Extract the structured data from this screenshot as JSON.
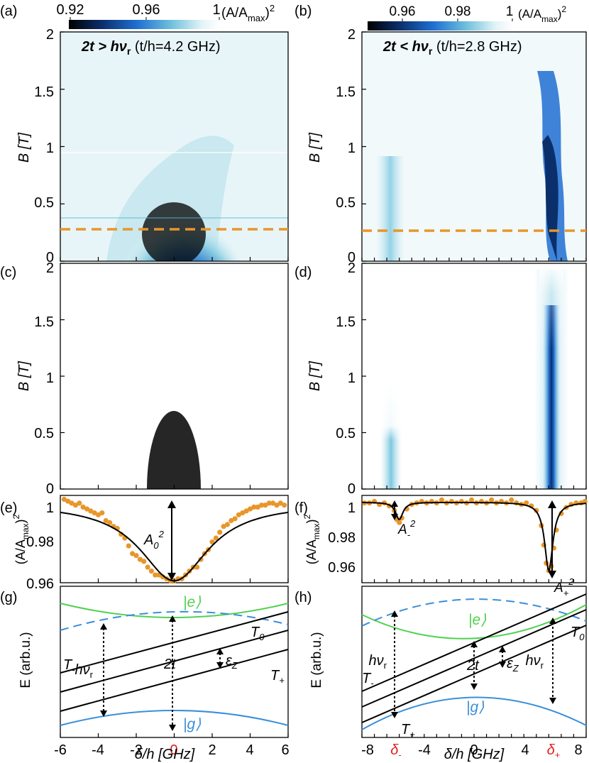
{
  "colors": {
    "orange": "#e8962a",
    "green": "#4fd14f",
    "blue": "#3b8fd9",
    "red": "#e02020",
    "black": "#000000",
    "cmap": [
      "#000000",
      "#0b2f6b",
      "#1f6fd1",
      "#6fc1dd",
      "#e3f3f7",
      "#ffffff"
    ]
  },
  "colorbars": [
    {
      "panel_label": "(a)",
      "ticks": [
        "0.92",
        "0.96",
        "1"
      ],
      "unit": "(A/A",
      "unit_sub": "max",
      "unit_end": ")",
      "unit_sup": "2"
    },
    {
      "panel_label": "(b)",
      "ticks": [
        "0.96",
        "0.98",
        "1"
      ],
      "unit": "(A/A",
      "unit_sub": "max",
      "unit_end": ")",
      "unit_sup": "2"
    }
  ],
  "maps": [
    {
      "panel_label": "(a)",
      "title_bold": "2t > hν",
      "title_sub": "r",
      "title_rest": " (t/h=4.2 GHz)",
      "ylabel": "B [T]",
      "yticks": [
        "0",
        "0.5",
        "1",
        "1.5",
        "2"
      ],
      "dashed_cut": "orange"
    },
    {
      "panel_label": "(b)",
      "title_bold": "2t < hν",
      "title_sub": "r",
      "title_rest": " (t/h=2.8 GHz)",
      "ylabel": "B [T]",
      "yticks": [
        "0",
        "0.5",
        "1",
        "1.5",
        "2"
      ],
      "dashed_cut": "orange"
    },
    {
      "panel_label": "(c)",
      "ylabel": "B [T]",
      "yticks": [
        "0",
        "0.5",
        "1",
        "1.5",
        "2"
      ]
    },
    {
      "panel_label": "(d)",
      "ylabel": "B [T]",
      "yticks": [
        "0",
        "0.5",
        "1",
        "1.5",
        "2"
      ]
    }
  ],
  "cuts": [
    {
      "panel_label": "(e)",
      "ylabel": "(A/A",
      "ylabel_sub": "max",
      "ylabel_end": ")",
      "ylabel_sup": "2",
      "yticks": [
        "0.96",
        "0.98",
        "1"
      ],
      "annot": "A",
      "annot_sub": "0",
      "annot_sup": "2"
    },
    {
      "panel_label": "(f)",
      "ylabel": "(A/A",
      "ylabel_sub": "max",
      "ylabel_end": ")",
      "ylabel_sup": "2",
      "yticks": [
        "0.96",
        "0.98",
        "1"
      ],
      "annot_minus": "A",
      "annot_minus_sub": "-",
      "annot_minus_sup": "2",
      "annot_plus": "A",
      "annot_plus_sub": "+",
      "annot_plus_sup": "2"
    }
  ],
  "energy": [
    {
      "panel_label": "(g)",
      "ylabel": "E (arb.u.)",
      "labels": {
        "e": "|e⟩",
        "g": "|g⟩",
        "Tminus": "T",
        "Tminus_sub": "-",
        "T0": "T",
        "T0_sub": "0",
        "Tplus": "T",
        "Tplus_sub": "+",
        "hv": "hν",
        "hv_sub": "r",
        "twot": "2t",
        "ez": "ε",
        "ez_sub": "Z"
      },
      "xticks": [
        "-6",
        "-4",
        "-2",
        "0",
        "2",
        "4",
        "6"
      ],
      "xlabel": "δ/h [GHz]",
      "red_tick": "0"
    },
    {
      "panel_label": "(h)",
      "ylabel": "E (arb.u.)",
      "labels": {
        "e": "|e⟩",
        "g": "|g⟩",
        "Tminus": "T",
        "Tminus_sub": "-",
        "T0": "T",
        "T0_sub": "0",
        "Tplus": "T",
        "Tplus_sub": "+",
        "hv": "hν",
        "hv_sub": "r",
        "twot": "2t",
        "ez": "ε",
        "ez_sub": "Z"
      },
      "xticks": [
        "-8",
        "-4",
        "0",
        "4",
        "8"
      ],
      "xlabel": "δ/h [GHz]",
      "red_ticks": [
        "δ",
        "δ"
      ],
      "red_subs": [
        "-",
        "+"
      ]
    }
  ],
  "chart_data": [
    {
      "type": "heatmap",
      "panel": "(a)",
      "x_range": [
        -6,
        6
      ],
      "y_range": [
        0,
        2
      ],
      "ylabel": "B [T]",
      "color_range": [
        0.92,
        1
      ],
      "dip_center_x": 0,
      "dip_halfwidth_at_B0": 3,
      "min_value": 0.92,
      "cut_B": 0.27
    },
    {
      "type": "heatmap",
      "panel": "(b)",
      "x_range": [
        -9,
        9
      ],
      "y_range": [
        0,
        2
      ],
      "ylabel": "B [T]",
      "color_range": [
        0.95,
        1
      ],
      "line_plus_x": 6,
      "line_minus_x": -6,
      "cut_B": 0.27
    },
    {
      "type": "heatmap",
      "panel": "(c)",
      "x_range": [
        -6,
        6
      ],
      "y_range": [
        0,
        2
      ],
      "ylabel": "B [T]",
      "color_range": [
        0.92,
        1
      ]
    },
    {
      "type": "heatmap",
      "panel": "(d)",
      "x_range": [
        -9,
        9
      ],
      "y_range": [
        0,
        2
      ],
      "ylabel": "B [T]",
      "color_range": [
        0.95,
        1
      ]
    },
    {
      "type": "scatter",
      "panel": "(e)",
      "x_range": [
        -6,
        6
      ],
      "ylim": [
        0.96,
        1.005
      ],
      "points": [
        [
          -5.8,
          1.003
        ],
        [
          -5.6,
          1.002
        ],
        [
          -5.4,
          1.001
        ],
        [
          -5.2,
          1.0
        ],
        [
          -5.0,
          1.001
        ],
        [
          -4.8,
          0.999
        ],
        [
          -4.6,
          0.998
        ],
        [
          -4.4,
          0.997
        ],
        [
          -4.2,
          0.996
        ],
        [
          -4.0,
          0.995
        ],
        [
          -3.8,
          0.996
        ],
        [
          -3.6,
          0.992
        ],
        [
          -3.4,
          0.991
        ],
        [
          -3.2,
          0.989
        ],
        [
          -3.0,
          0.988
        ],
        [
          -2.8,
          0.985
        ],
        [
          -2.6,
          0.983
        ],
        [
          -2.4,
          0.979
        ],
        [
          -2.2,
          0.975
        ],
        [
          -2.0,
          0.974
        ],
        [
          -1.8,
          0.972
        ],
        [
          -1.6,
          0.971
        ],
        [
          -1.4,
          0.968
        ],
        [
          -1.2,
          0.966
        ],
        [
          -1.0,
          0.964
        ],
        [
          -0.8,
          0.964
        ],
        [
          -0.6,
          0.963
        ],
        [
          -0.4,
          0.962
        ],
        [
          -0.2,
          0.961
        ],
        [
          0.0,
          0.961
        ],
        [
          0.2,
          0.962
        ],
        [
          0.4,
          0.962
        ],
        [
          0.6,
          0.964
        ],
        [
          0.8,
          0.966
        ],
        [
          1.0,
          0.968
        ],
        [
          1.2,
          0.968
        ],
        [
          1.4,
          0.972
        ],
        [
          1.6,
          0.975
        ],
        [
          1.8,
          0.977
        ],
        [
          2.0,
          0.981
        ],
        [
          2.2,
          0.983
        ],
        [
          2.4,
          0.986
        ],
        [
          2.6,
          0.989
        ],
        [
          2.8,
          0.99
        ],
        [
          3.0,
          0.992
        ],
        [
          3.2,
          0.993
        ],
        [
          3.4,
          0.995
        ],
        [
          3.6,
          0.996
        ],
        [
          3.8,
          0.997
        ],
        [
          4.0,
          0.998
        ],
        [
          4.2,
          0.999
        ],
        [
          4.4,
          0.999
        ],
        [
          4.6,
          1.0
        ],
        [
          4.8,
          1.0
        ],
        [
          5.0,
          1.001
        ],
        [
          5.2,
          1.001
        ],
        [
          5.4,
          1.0
        ],
        [
          5.6,
          1.001
        ],
        [
          5.8,
          1.0
        ]
      ],
      "fit_min": 0.961,
      "fit_halfwidth": 2.2
    },
    {
      "type": "scatter",
      "panel": "(f)",
      "x_range": [
        -9,
        9
      ],
      "ylim": [
        0.947,
        1.005
      ],
      "points": [
        [
          -8.8,
          1.0
        ],
        [
          -8.4,
          1.0
        ],
        [
          -8.0,
          1.001
        ],
        [
          -7.6,
          0.999
        ],
        [
          -7.2,
          1.0
        ],
        [
          -6.8,
          0.998
        ],
        [
          -6.4,
          0.995
        ],
        [
          -6.2,
          0.989
        ],
        [
          -6.0,
          0.987
        ],
        [
          -5.8,
          0.99
        ],
        [
          -5.4,
          0.996
        ],
        [
          -5.0,
          0.999
        ],
        [
          -4.6,
          1.0
        ],
        [
          -4.2,
          1.001
        ],
        [
          -3.8,
          1.0
        ],
        [
          -3.4,
          1.001
        ],
        [
          -3.0,
          1.0
        ],
        [
          -2.6,
          1.002
        ],
        [
          -2.2,
          1.0
        ],
        [
          -1.8,
          1.001
        ],
        [
          -1.4,
          1.0
        ],
        [
          -1.0,
          1.001
        ],
        [
          -0.6,
          1.0
        ],
        [
          -0.2,
          1.002
        ],
        [
          0.2,
          1.0
        ],
        [
          0.6,
          1.001
        ],
        [
          1.0,
          1.0
        ],
        [
          1.4,
          1.002
        ],
        [
          1.8,
          1.0
        ],
        [
          2.2,
          1.001
        ],
        [
          2.6,
          1.0
        ],
        [
          3.0,
          1.002
        ],
        [
          3.4,
          1.0
        ],
        [
          3.8,
          0.999
        ],
        [
          4.2,
          1.0
        ],
        [
          4.6,
          0.998
        ],
        [
          5.0,
          0.995
        ],
        [
          5.4,
          0.985
        ],
        [
          5.6,
          0.972
        ],
        [
          5.8,
          0.96
        ],
        [
          6.0,
          0.955
        ],
        [
          6.2,
          0.958
        ],
        [
          6.4,
          0.97
        ],
        [
          6.6,
          0.982
        ],
        [
          7.0,
          0.993
        ],
        [
          7.4,
          0.997
        ],
        [
          7.8,
          0.999
        ],
        [
          8.2,
          1.0
        ],
        [
          8.6,
          1.0
        ],
        [
          8.9,
          1.001
        ]
      ],
      "fit_minus_min": 0.989,
      "fit_plus_min": 0.955
    },
    {
      "type": "line",
      "panel": "(g)",
      "x_range": [
        -6,
        6
      ],
      "series": [
        {
          "name": "|e⟩",
          "color": "green"
        },
        {
          "name": "|g⟩",
          "color": "blue"
        },
        {
          "name": "T",
          "color": "black"
        }
      ]
    },
    {
      "type": "line",
      "panel": "(h)",
      "x_range": [
        -9,
        9
      ],
      "series": [
        {
          "name": "|e⟩",
          "color": "green"
        },
        {
          "name": "|g⟩",
          "color": "blue"
        },
        {
          "name": "T",
          "color": "black"
        }
      ]
    }
  ]
}
